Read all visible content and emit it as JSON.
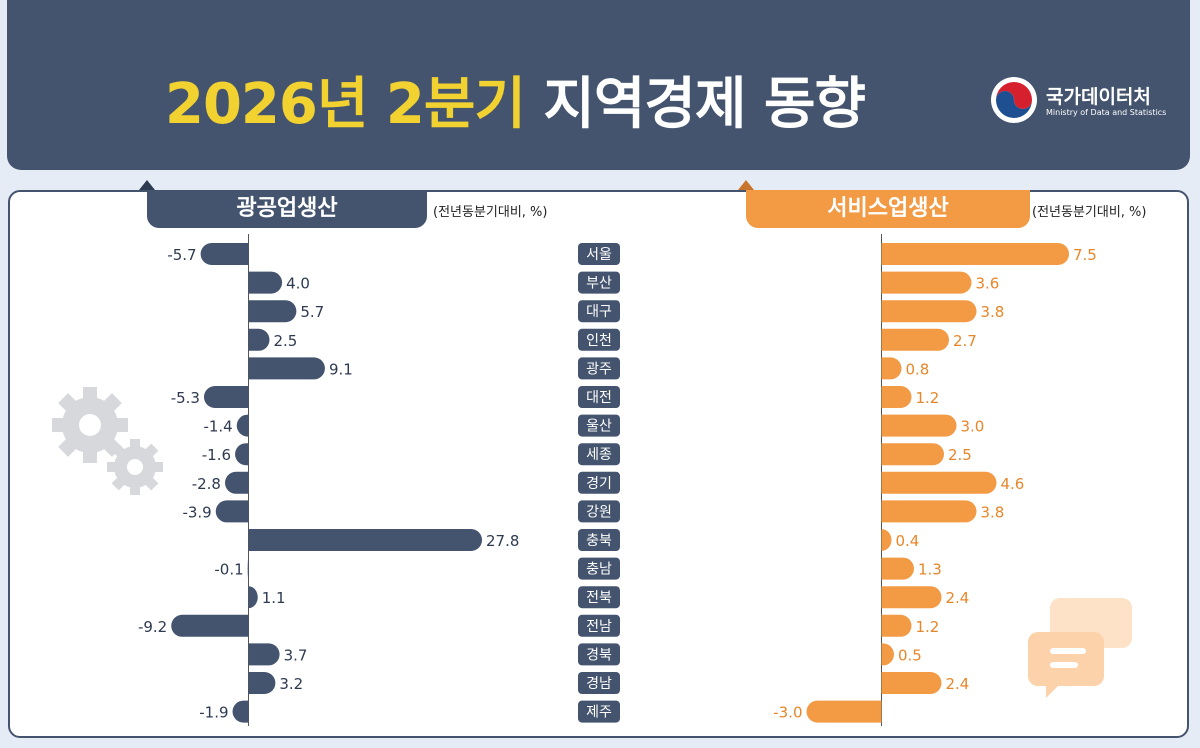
{
  "header": {
    "title_highlight": "2026년 2분기",
    "title_rest": "지역경제 동향",
    "logo_name": "국가데이터처",
    "logo_sub": "Ministry of Data and Statistics"
  },
  "colors": {
    "mining": "#44546e",
    "service": "#f39a45",
    "title_highlight": "#f2d230"
  },
  "chart_data": [
    {
      "type": "bar",
      "title": "광공업생산",
      "unit": "(전년동분기대비, %)",
      "categories": [
        "서울",
        "부산",
        "대구",
        "인천",
        "광주",
        "대전",
        "울산",
        "세종",
        "경기",
        "강원",
        "충북",
        "충남",
        "전북",
        "전남",
        "경북",
        "경남",
        "제주"
      ],
      "values": [
        -5.7,
        4.0,
        5.7,
        2.5,
        9.1,
        -5.3,
        -1.4,
        -1.6,
        -2.8,
        -3.9,
        27.8,
        -0.1,
        1.1,
        -9.2,
        3.7,
        3.2,
        -1.9
      ],
      "labels": [
        "-5.7",
        "4.0",
        "5.7",
        "2.5",
        "9.1",
        "-5.3",
        "-1.4",
        "-1.6",
        "-2.8",
        "-3.9",
        "27.8",
        "-0.1",
        "1.1",
        "-9.2",
        "3.7",
        "3.2",
        "-1.9"
      ]
    },
    {
      "type": "bar",
      "title": "서비스업생산",
      "unit": "(전년동분기대비, %)",
      "categories": [
        "서울",
        "부산",
        "대구",
        "인천",
        "광주",
        "대전",
        "울산",
        "세종",
        "경기",
        "강원",
        "충북",
        "충남",
        "전북",
        "전남",
        "경북",
        "경남",
        "제주"
      ],
      "values": [
        7.5,
        3.6,
        3.8,
        2.7,
        0.8,
        1.2,
        3.0,
        2.5,
        4.6,
        3.8,
        0.4,
        1.3,
        2.4,
        1.2,
        0.5,
        2.4,
        -3.0
      ],
      "labels": [
        "7.5",
        "3.6",
        "3.8",
        "2.7",
        "0.8",
        "1.2",
        "3.0",
        "2.5",
        "4.6",
        "3.8",
        "0.4",
        "1.3",
        "2.4",
        "1.2",
        "0.5",
        "2.4",
        "-3.0"
      ]
    }
  ]
}
